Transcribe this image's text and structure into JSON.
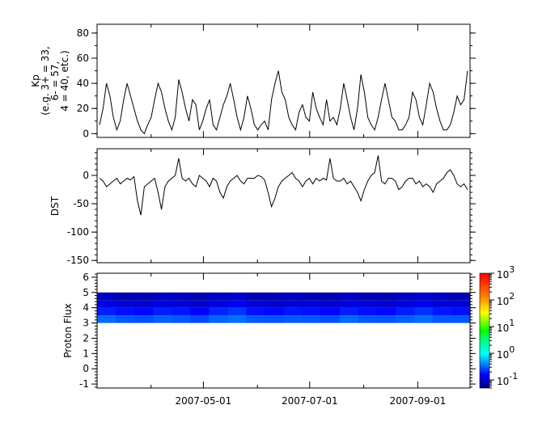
{
  "chart_data": [
    {
      "type": "line",
      "ylabel_lines": [
        "Kp",
        "(e.g. 3+ = 33,",
        "6- = 57,",
        "4 = 40, etc.)"
      ],
      "xlim": [
        "2007-03-01",
        "2007-10-01"
      ],
      "ylim": [
        -3,
        87
      ],
      "yticks": [
        0,
        20,
        40,
        60,
        80
      ],
      "color": "#000000",
      "values": [
        7,
        20,
        40,
        30,
        13,
        3,
        10,
        27,
        40,
        30,
        20,
        10,
        3,
        0,
        7,
        13,
        27,
        40,
        33,
        20,
        10,
        3,
        13,
        43,
        33,
        20,
        10,
        27,
        23,
        3,
        10,
        20,
        27,
        7,
        3,
        13,
        23,
        30,
        40,
        27,
        13,
        3,
        13,
        30,
        20,
        7,
        3,
        7,
        10,
        3,
        27,
        40,
        50,
        33,
        27,
        13,
        7,
        3,
        17,
        23,
        13,
        10,
        33,
        20,
        13,
        7,
        27,
        10,
        13,
        7,
        20,
        40,
        27,
        13,
        3,
        20,
        47,
        33,
        13,
        7,
        3,
        13,
        27,
        40,
        27,
        13,
        10,
        3,
        3,
        7,
        13,
        33,
        27,
        13,
        7,
        23,
        40,
        33,
        20,
        10,
        3,
        3,
        7,
        17,
        30,
        23,
        27,
        50
      ]
    },
    {
      "type": "line",
      "ylabel": "DST",
      "xlim": [
        "2007-03-01",
        "2007-10-01"
      ],
      "ylim": [
        -154,
        47
      ],
      "yticks": [
        0,
        -50,
        -100,
        -150
      ],
      "color": "#000000",
      "values": [
        -5,
        -10,
        -20,
        -15,
        -10,
        -5,
        -15,
        -10,
        -5,
        -8,
        -2,
        -45,
        -70,
        -20,
        -15,
        -10,
        -5,
        -30,
        -60,
        -20,
        -10,
        -5,
        0,
        30,
        -5,
        -10,
        -5,
        -15,
        -20,
        0,
        -5,
        -10,
        -20,
        -5,
        -10,
        -30,
        -40,
        -20,
        -10,
        -5,
        0,
        -10,
        -15,
        -5,
        -5,
        -5,
        0,
        -2,
        -8,
        -30,
        -55,
        -40,
        -20,
        -10,
        -5,
        0,
        5,
        -5,
        -10,
        -20,
        -10,
        -5,
        -15,
        -5,
        -10,
        -5,
        -8,
        30,
        -5,
        -10,
        -10,
        -5,
        -15,
        -10,
        -20,
        -30,
        -45,
        -25,
        -10,
        0,
        5,
        35,
        -10,
        -15,
        -5,
        -5,
        -10,
        -25,
        -20,
        -10,
        -5,
        -5,
        -15,
        -10,
        -20,
        -15,
        -20,
        -30,
        -15,
        -10,
        -5,
        5,
        10,
        0,
        -15,
        -20,
        -15,
        -25
      ]
    },
    {
      "type": "heatmap",
      "ylabel": "Proton Flux",
      "xlim": [
        "2007-03-01",
        "2007-10-01"
      ],
      "ylim": [
        -1.26,
        6.26
      ],
      "yticks": [
        -1,
        0,
        1,
        2,
        3,
        4,
        5,
        6
      ],
      "xticks": [
        "2007-05-01",
        "2007-07-01",
        "2007-09-01"
      ],
      "y_bins": [
        3,
        3.5,
        4,
        4.5,
        5
      ],
      "z": [
        [
          0.35,
          0.3,
          0.28,
          0.32,
          0.3,
          0.27,
          0.33,
          0.36,
          0.3,
          0.29,
          0.31,
          0.3,
          0.28,
          0.34,
          0.3,
          0.29,
          0.32,
          0.35,
          0.3,
          0.3
        ],
        [
          0.2,
          0.18,
          0.17,
          0.2,
          0.19,
          0.16,
          0.21,
          0.24,
          0.18,
          0.17,
          0.19,
          0.18,
          0.17,
          0.2,
          0.18,
          0.17,
          0.2,
          0.23,
          0.19,
          0.18
        ],
        [
          0.12,
          0.11,
          0.1,
          0.12,
          0.11,
          0.1,
          0.12,
          0.14,
          0.11,
          0.1,
          0.11,
          0.11,
          0.1,
          0.12,
          0.11,
          0.1,
          0.12,
          0.13,
          0.11,
          0.11
        ],
        [
          0.09,
          0.08,
          0.08,
          0.09,
          0.09,
          0.08,
          0.09,
          0.1,
          0.08,
          0.08,
          0.09,
          0.08,
          0.08,
          0.09,
          0.08,
          0.08,
          0.09,
          0.1,
          0.09,
          0.08
        ]
      ],
      "colorbar": {
        "scale": "log",
        "range": [
          0.05,
          1000
        ],
        "tick_exponents": [
          -1,
          0,
          1,
          2,
          3
        ],
        "colormap": "rainbow"
      }
    }
  ]
}
